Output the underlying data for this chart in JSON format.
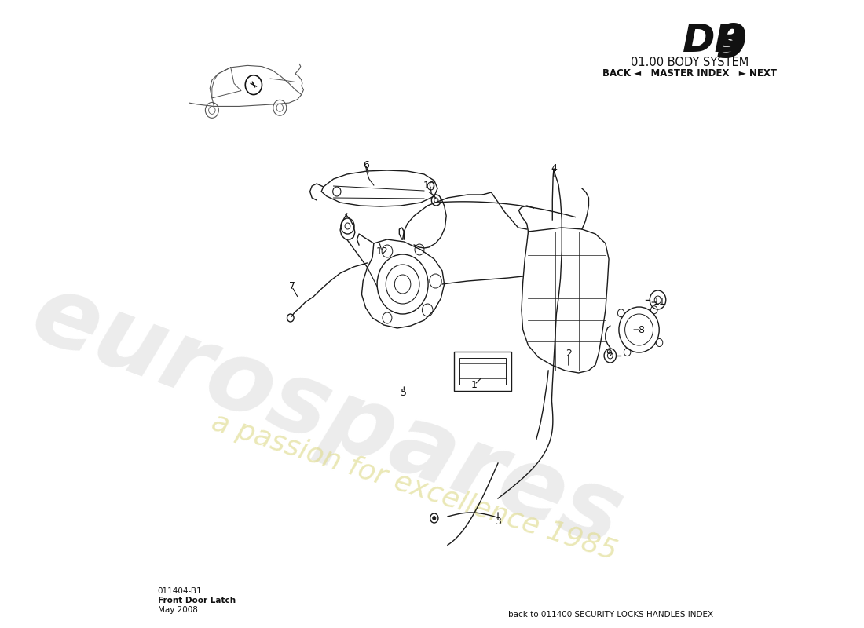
{
  "bg_color": "#ffffff",
  "title_db9": "DB 9",
  "title_system": "01.00 BODY SYSTEM",
  "nav_text": "BACK ◄   MASTER INDEX   ► NEXT",
  "part_number": "011404-B1",
  "part_name": "Front Door Latch",
  "part_date": "May 2008",
  "back_link": "back to 011400 SECURITY LOCKS HANDLES INDEX",
  "watermark_text": "eurospares",
  "watermark_subtext": "a passion for excellence 1985",
  "parts_color": "#1a1a1a",
  "label_data": [
    [
      "1",
      520,
      490
    ],
    [
      "2",
      660,
      450
    ],
    [
      "3",
      555,
      665
    ],
    [
      "4",
      638,
      215
    ],
    [
      "5",
      415,
      500
    ],
    [
      "6",
      358,
      210
    ],
    [
      "7",
      248,
      365
    ],
    [
      "8",
      768,
      420
    ],
    [
      "9",
      720,
      450
    ],
    [
      "10",
      453,
      237
    ],
    [
      "11",
      795,
      385
    ],
    [
      "12",
      382,
      320
    ]
  ]
}
